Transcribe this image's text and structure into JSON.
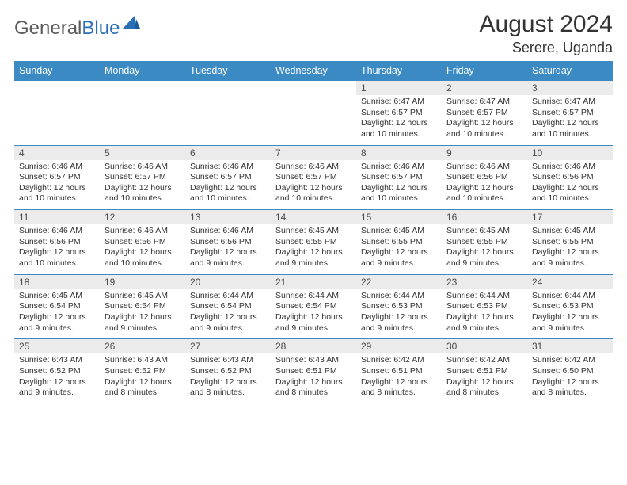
{
  "logo": {
    "text1": "General",
    "text2": "Blue"
  },
  "title": "August 2024",
  "location": "Serere, Uganda",
  "colors": {
    "header_bg": "#3b8ac4",
    "header_text": "#ffffff",
    "daynum_bg": "#ebebeb",
    "border": "#3b8ac4",
    "title_color": "#333333",
    "body_text": "#333333"
  },
  "day_headers": [
    "Sunday",
    "Monday",
    "Tuesday",
    "Wednesday",
    "Thursday",
    "Friday",
    "Saturday"
  ],
  "weeks": [
    [
      {
        "n": "",
        "lines": []
      },
      {
        "n": "",
        "lines": []
      },
      {
        "n": "",
        "lines": []
      },
      {
        "n": "",
        "lines": []
      },
      {
        "n": "1",
        "lines": [
          "Sunrise: 6:47 AM",
          "Sunset: 6:57 PM",
          "Daylight: 12 hours and 10 minutes."
        ]
      },
      {
        "n": "2",
        "lines": [
          "Sunrise: 6:47 AM",
          "Sunset: 6:57 PM",
          "Daylight: 12 hours and 10 minutes."
        ]
      },
      {
        "n": "3",
        "lines": [
          "Sunrise: 6:47 AM",
          "Sunset: 6:57 PM",
          "Daylight: 12 hours and 10 minutes."
        ]
      }
    ],
    [
      {
        "n": "4",
        "lines": [
          "Sunrise: 6:46 AM",
          "Sunset: 6:57 PM",
          "Daylight: 12 hours and 10 minutes."
        ]
      },
      {
        "n": "5",
        "lines": [
          "Sunrise: 6:46 AM",
          "Sunset: 6:57 PM",
          "Daylight: 12 hours and 10 minutes."
        ]
      },
      {
        "n": "6",
        "lines": [
          "Sunrise: 6:46 AM",
          "Sunset: 6:57 PM",
          "Daylight: 12 hours and 10 minutes."
        ]
      },
      {
        "n": "7",
        "lines": [
          "Sunrise: 6:46 AM",
          "Sunset: 6:57 PM",
          "Daylight: 12 hours and 10 minutes."
        ]
      },
      {
        "n": "8",
        "lines": [
          "Sunrise: 6:46 AM",
          "Sunset: 6:57 PM",
          "Daylight: 12 hours and 10 minutes."
        ]
      },
      {
        "n": "9",
        "lines": [
          "Sunrise: 6:46 AM",
          "Sunset: 6:56 PM",
          "Daylight: 12 hours and 10 minutes."
        ]
      },
      {
        "n": "10",
        "lines": [
          "Sunrise: 6:46 AM",
          "Sunset: 6:56 PM",
          "Daylight: 12 hours and 10 minutes."
        ]
      }
    ],
    [
      {
        "n": "11",
        "lines": [
          "Sunrise: 6:46 AM",
          "Sunset: 6:56 PM",
          "Daylight: 12 hours and 10 minutes."
        ]
      },
      {
        "n": "12",
        "lines": [
          "Sunrise: 6:46 AM",
          "Sunset: 6:56 PM",
          "Daylight: 12 hours and 10 minutes."
        ]
      },
      {
        "n": "13",
        "lines": [
          "Sunrise: 6:46 AM",
          "Sunset: 6:56 PM",
          "Daylight: 12 hours and 9 minutes."
        ]
      },
      {
        "n": "14",
        "lines": [
          "Sunrise: 6:45 AM",
          "Sunset: 6:55 PM",
          "Daylight: 12 hours and 9 minutes."
        ]
      },
      {
        "n": "15",
        "lines": [
          "Sunrise: 6:45 AM",
          "Sunset: 6:55 PM",
          "Daylight: 12 hours and 9 minutes."
        ]
      },
      {
        "n": "16",
        "lines": [
          "Sunrise: 6:45 AM",
          "Sunset: 6:55 PM",
          "Daylight: 12 hours and 9 minutes."
        ]
      },
      {
        "n": "17",
        "lines": [
          "Sunrise: 6:45 AM",
          "Sunset: 6:55 PM",
          "Daylight: 12 hours and 9 minutes."
        ]
      }
    ],
    [
      {
        "n": "18",
        "lines": [
          "Sunrise: 6:45 AM",
          "Sunset: 6:54 PM",
          "Daylight: 12 hours and 9 minutes."
        ]
      },
      {
        "n": "19",
        "lines": [
          "Sunrise: 6:45 AM",
          "Sunset: 6:54 PM",
          "Daylight: 12 hours and 9 minutes."
        ]
      },
      {
        "n": "20",
        "lines": [
          "Sunrise: 6:44 AM",
          "Sunset: 6:54 PM",
          "Daylight: 12 hours and 9 minutes."
        ]
      },
      {
        "n": "21",
        "lines": [
          "Sunrise: 6:44 AM",
          "Sunset: 6:54 PM",
          "Daylight: 12 hours and 9 minutes."
        ]
      },
      {
        "n": "22",
        "lines": [
          "Sunrise: 6:44 AM",
          "Sunset: 6:53 PM",
          "Daylight: 12 hours and 9 minutes."
        ]
      },
      {
        "n": "23",
        "lines": [
          "Sunrise: 6:44 AM",
          "Sunset: 6:53 PM",
          "Daylight: 12 hours and 9 minutes."
        ]
      },
      {
        "n": "24",
        "lines": [
          "Sunrise: 6:44 AM",
          "Sunset: 6:53 PM",
          "Daylight: 12 hours and 9 minutes."
        ]
      }
    ],
    [
      {
        "n": "25",
        "lines": [
          "Sunrise: 6:43 AM",
          "Sunset: 6:52 PM",
          "Daylight: 12 hours and 9 minutes."
        ]
      },
      {
        "n": "26",
        "lines": [
          "Sunrise: 6:43 AM",
          "Sunset: 6:52 PM",
          "Daylight: 12 hours and 8 minutes."
        ]
      },
      {
        "n": "27",
        "lines": [
          "Sunrise: 6:43 AM",
          "Sunset: 6:52 PM",
          "Daylight: 12 hours and 8 minutes."
        ]
      },
      {
        "n": "28",
        "lines": [
          "Sunrise: 6:43 AM",
          "Sunset: 6:51 PM",
          "Daylight: 12 hours and 8 minutes."
        ]
      },
      {
        "n": "29",
        "lines": [
          "Sunrise: 6:42 AM",
          "Sunset: 6:51 PM",
          "Daylight: 12 hours and 8 minutes."
        ]
      },
      {
        "n": "30",
        "lines": [
          "Sunrise: 6:42 AM",
          "Sunset: 6:51 PM",
          "Daylight: 12 hours and 8 minutes."
        ]
      },
      {
        "n": "31",
        "lines": [
          "Sunrise: 6:42 AM",
          "Sunset: 6:50 PM",
          "Daylight: 12 hours and 8 minutes."
        ]
      }
    ]
  ]
}
